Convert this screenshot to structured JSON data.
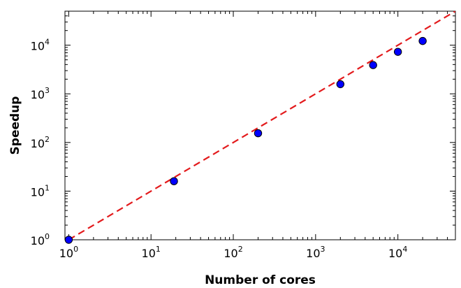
{
  "chart_data": {
    "type": "scatter",
    "xlabel": "Number of cores",
    "ylabel": "Speedup",
    "xscale": "log",
    "yscale": "log",
    "xlim": [
      0.9,
      50000
    ],
    "ylim": [
      1,
      50000
    ],
    "grid": false,
    "x_ticks": [
      {
        "base": "10",
        "exp": "0",
        "value": 1
      },
      {
        "base": "10",
        "exp": "1",
        "value": 10
      },
      {
        "base": "10",
        "exp": "2",
        "value": 100
      },
      {
        "base": "10",
        "exp": "3",
        "value": 1000
      },
      {
        "base": "10",
        "exp": "4",
        "value": 10000
      }
    ],
    "y_ticks": [
      {
        "base": "10",
        "exp": "0",
        "value": 1
      },
      {
        "base": "10",
        "exp": "1",
        "value": 10
      },
      {
        "base": "10",
        "exp": "2",
        "value": 100
      },
      {
        "base": "10",
        "exp": "3",
        "value": 1000
      },
      {
        "base": "10",
        "exp": "4",
        "value": 10000
      }
    ],
    "series": [
      {
        "kind": "points",
        "color": "#0000ff",
        "x": [
          1,
          19,
          200,
          2000,
          5000,
          10000,
          20000
        ],
        "y": [
          1,
          16,
          155,
          1580,
          3900,
          7300,
          12200
        ]
      },
      {
        "kind": "reference-line",
        "style": "dashed",
        "color": "#e31a1c",
        "x": [
          1,
          50000
        ],
        "y": [
          1,
          50000
        ]
      }
    ]
  }
}
